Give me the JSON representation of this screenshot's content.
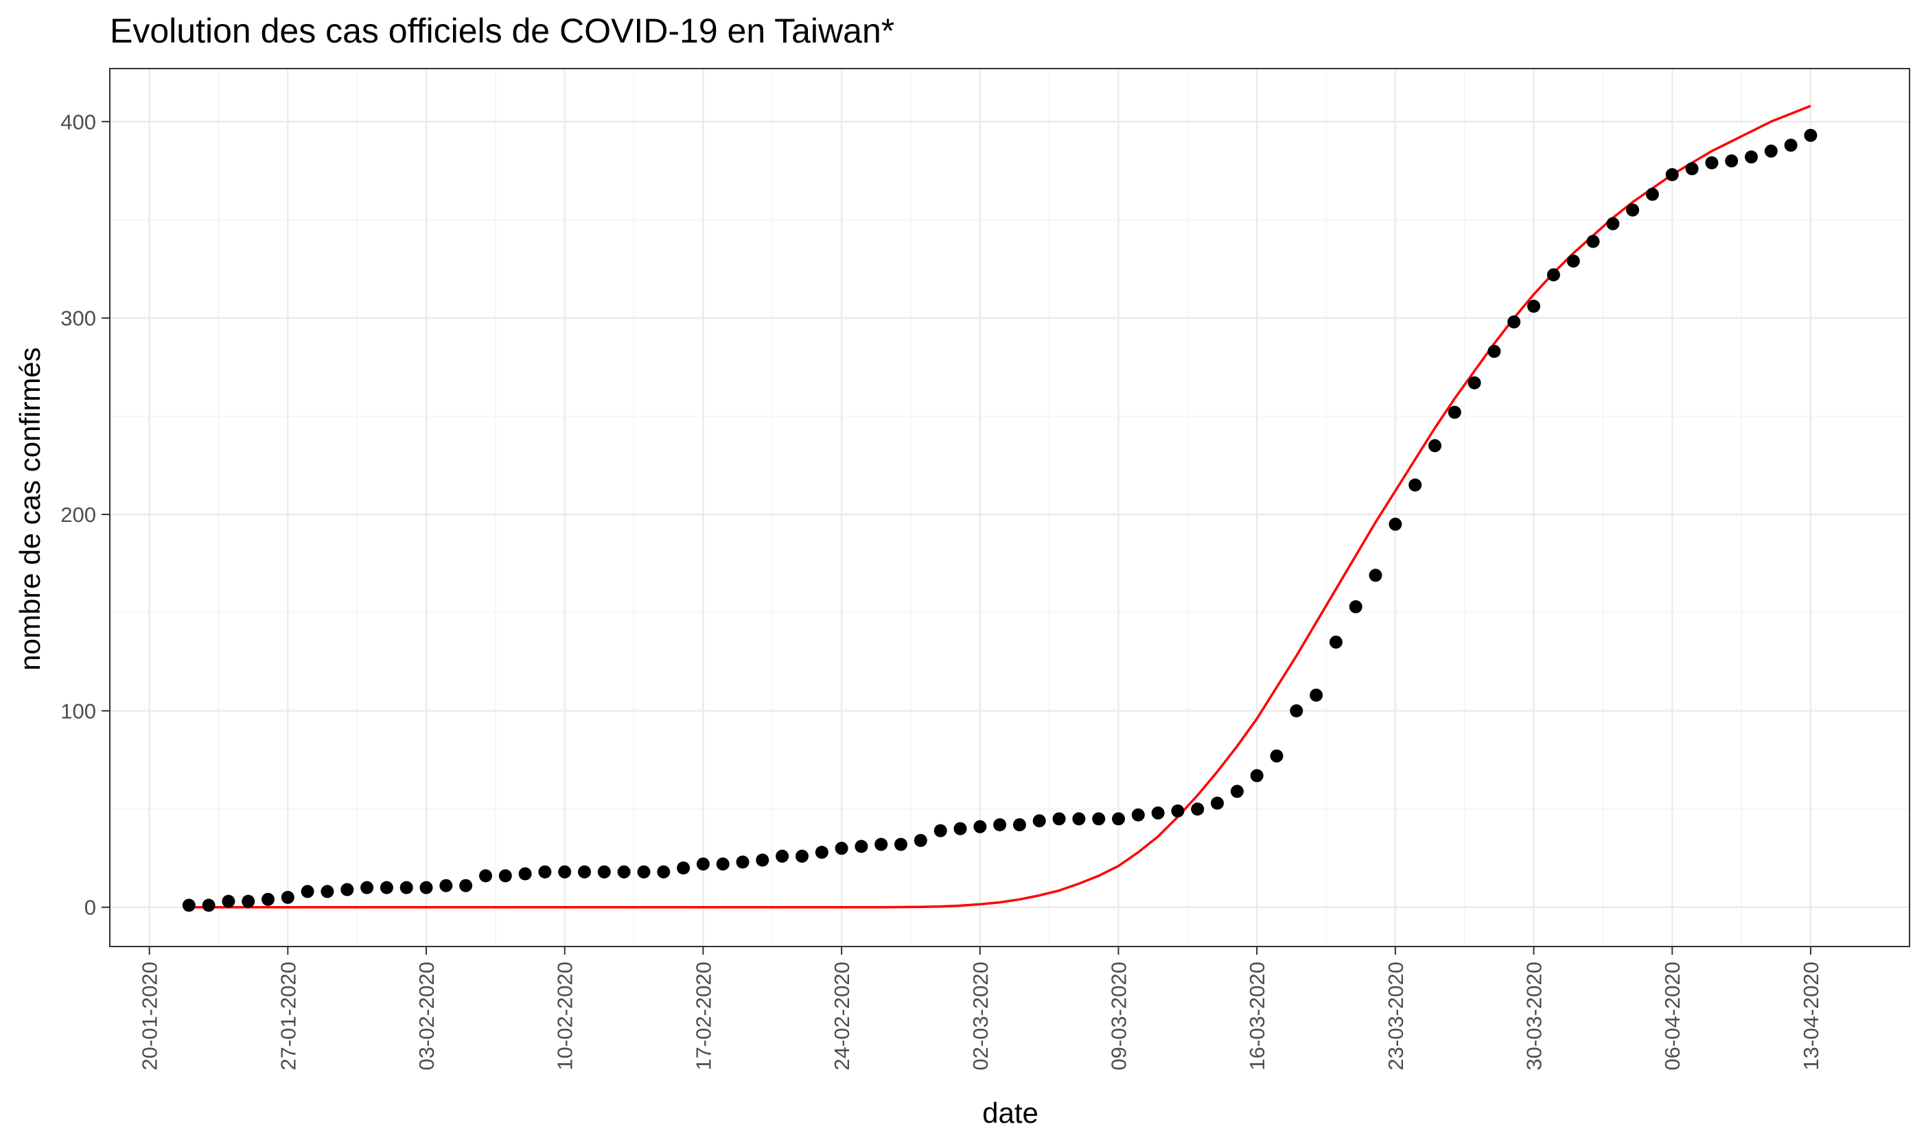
{
  "chart_data": {
    "type": "scatter",
    "title": "Evolution des cas officiels de COVID-19 en Taiwan*",
    "xlabel": "date",
    "ylabel": "nombre de cas confirmés",
    "x_ticks": [
      "20-01-2020",
      "27-01-2020",
      "03-02-2020",
      "10-02-2020",
      "17-02-2020",
      "24-02-2020",
      "02-03-2020",
      "09-03-2020",
      "16-03-2020",
      "23-03-2020",
      "30-03-2020",
      "06-04-2020",
      "13-04-2020"
    ],
    "y_ticks": [
      "0",
      "100",
      "200",
      "300",
      "400"
    ],
    "xlim": [
      "2020-01-18",
      "2020-04-18"
    ],
    "ylim": [
      -20,
      427
    ],
    "grid": true,
    "series": [
      {
        "type": "scatter",
        "color": "#000000",
        "x": [
          "2020-01-22",
          "2020-01-23",
          "2020-01-24",
          "2020-01-25",
          "2020-01-26",
          "2020-01-27",
          "2020-01-28",
          "2020-01-29",
          "2020-01-30",
          "2020-01-31",
          "2020-02-01",
          "2020-02-02",
          "2020-02-03",
          "2020-02-04",
          "2020-02-05",
          "2020-02-06",
          "2020-02-07",
          "2020-02-08",
          "2020-02-09",
          "2020-02-10",
          "2020-02-11",
          "2020-02-12",
          "2020-02-13",
          "2020-02-14",
          "2020-02-15",
          "2020-02-16",
          "2020-02-17",
          "2020-02-18",
          "2020-02-19",
          "2020-02-20",
          "2020-02-21",
          "2020-02-22",
          "2020-02-23",
          "2020-02-24",
          "2020-02-25",
          "2020-02-26",
          "2020-02-27",
          "2020-02-28",
          "2020-02-29",
          "2020-03-01",
          "2020-03-02",
          "2020-03-03",
          "2020-03-04",
          "2020-03-05",
          "2020-03-06",
          "2020-03-07",
          "2020-03-08",
          "2020-03-09",
          "2020-03-10",
          "2020-03-11",
          "2020-03-12",
          "2020-03-13",
          "2020-03-14",
          "2020-03-15",
          "2020-03-16",
          "2020-03-17",
          "2020-03-18",
          "2020-03-19",
          "2020-03-20",
          "2020-03-21",
          "2020-03-22",
          "2020-03-23",
          "2020-03-24",
          "2020-03-25",
          "2020-03-26",
          "2020-03-27",
          "2020-03-28",
          "2020-03-29",
          "2020-03-30",
          "2020-03-31",
          "2020-04-01",
          "2020-04-02",
          "2020-04-03",
          "2020-04-04",
          "2020-04-05",
          "2020-04-06",
          "2020-04-07",
          "2020-04-08",
          "2020-04-09",
          "2020-04-10",
          "2020-04-11",
          "2020-04-12",
          "2020-04-13"
        ],
        "y": [
          1,
          1,
          3,
          3,
          4,
          5,
          8,
          8,
          9,
          10,
          10,
          10,
          10,
          11,
          11,
          16,
          16,
          17,
          18,
          18,
          18,
          18,
          18,
          18,
          18,
          20,
          22,
          22,
          23,
          24,
          26,
          26,
          28,
          30,
          31,
          32,
          32,
          34,
          39,
          40,
          41,
          42,
          42,
          44,
          45,
          45,
          45,
          45,
          47,
          48,
          49,
          50,
          53,
          59,
          67,
          77,
          100,
          108,
          135,
          153,
          169,
          195,
          215,
          235,
          252,
          267,
          283,
          298,
          306,
          322,
          329,
          339,
          348,
          355,
          363,
          373,
          376,
          379,
          380,
          382,
          385,
          388,
          393
        ]
      },
      {
        "type": "line",
        "color": "#ff0000",
        "x": [
          "2020-01-22",
          "2020-01-29",
          "2020-02-05",
          "2020-02-12",
          "2020-02-19",
          "2020-02-26",
          "2020-02-28",
          "2020-02-29",
          "2020-03-01",
          "2020-03-02",
          "2020-03-03",
          "2020-03-04",
          "2020-03-05",
          "2020-03-06",
          "2020-03-07",
          "2020-03-08",
          "2020-03-09",
          "2020-03-10",
          "2020-03-11",
          "2020-03-12",
          "2020-03-13",
          "2020-03-14",
          "2020-03-15",
          "2020-03-16",
          "2020-03-17",
          "2020-03-18",
          "2020-03-19",
          "2020-03-20",
          "2020-03-21",
          "2020-03-22",
          "2020-03-23",
          "2020-03-24",
          "2020-03-25",
          "2020-03-26",
          "2020-03-27",
          "2020-03-28",
          "2020-03-29",
          "2020-03-30",
          "2020-03-31",
          "2020-04-01",
          "2020-04-02",
          "2020-04-03",
          "2020-04-04",
          "2020-04-05",
          "2020-04-06",
          "2020-04-07",
          "2020-04-08",
          "2020-04-09",
          "2020-04-10",
          "2020-04-11",
          "2020-04-12",
          "2020-04-13"
        ],
        "y": [
          0,
          0,
          0,
          0,
          0,
          0,
          0.2,
          0.4,
          0.8,
          1.5,
          2.5,
          4,
          6,
          8.5,
          12,
          16,
          21,
          28,
          36,
          46,
          57,
          69,
          82,
          96,
          112,
          128,
          145,
          162,
          179,
          196,
          212,
          228,
          244,
          259,
          273,
          287,
          300,
          312,
          323,
          333,
          342,
          351,
          359,
          366,
          373,
          379,
          385,
          390,
          395,
          400,
          404,
          408
        ]
      }
    ]
  }
}
